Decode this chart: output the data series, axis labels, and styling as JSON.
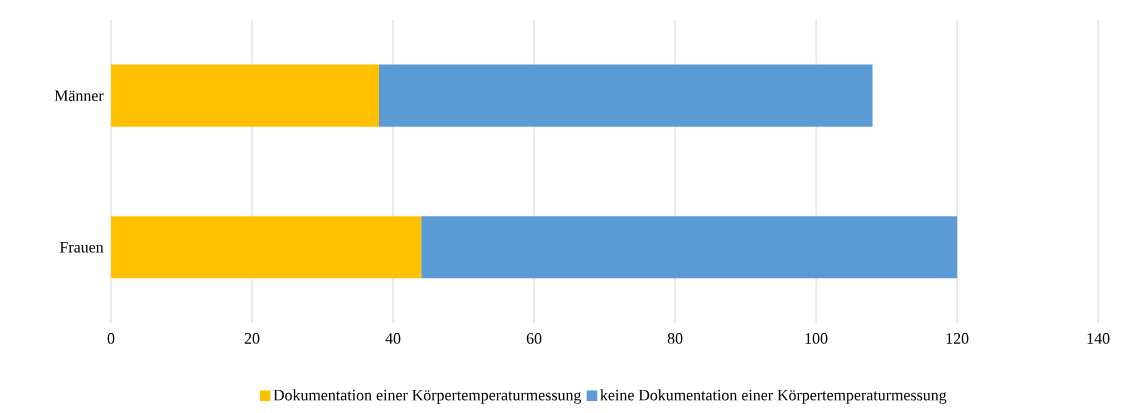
{
  "chart_data": {
    "type": "bar",
    "orientation": "horizontal",
    "stacked": true,
    "categories": [
      "Männer",
      "Frauen"
    ],
    "series": [
      {
        "name": "Dokumentation einer Körpertemperaturmessung",
        "color": "#ffc000",
        "values": [
          38,
          44
        ]
      },
      {
        "name": "keine Dokumentation einer Körpertemperaturmessung",
        "color": "#5b9bd5",
        "values": [
          70,
          76
        ]
      }
    ],
    "xlim": [
      0,
      140
    ],
    "xticks": [
      0,
      20,
      40,
      60,
      80,
      100,
      120,
      140
    ],
    "grid": "x",
    "legend": "bottom"
  }
}
